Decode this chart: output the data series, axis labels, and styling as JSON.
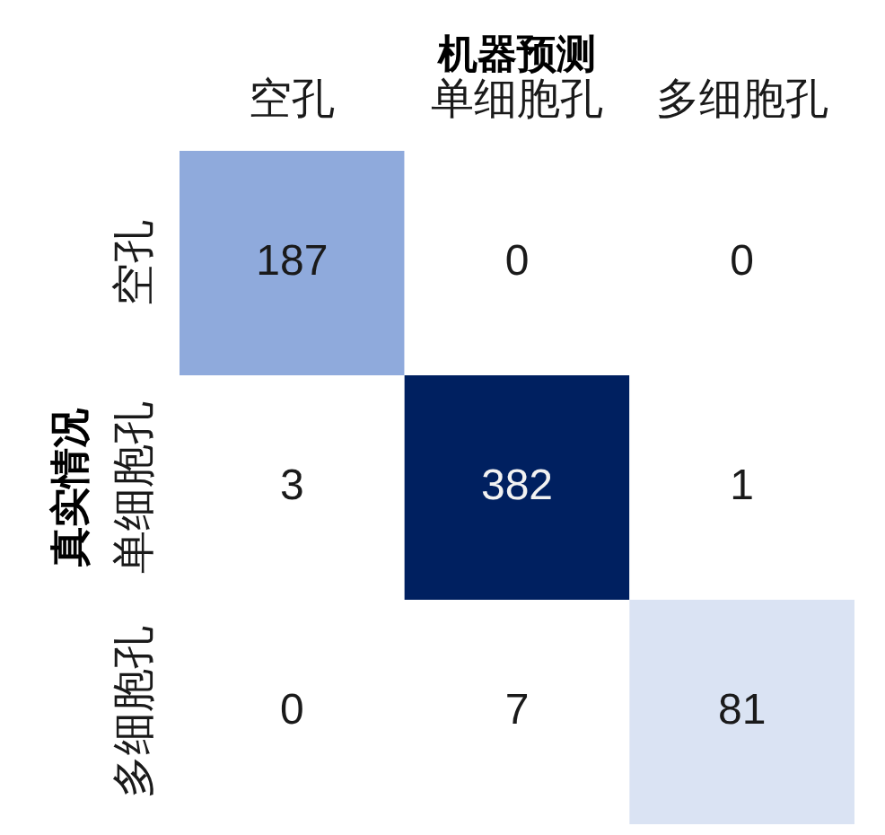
{
  "chart_data": {
    "type": "heatmap",
    "xlabel": "机器预测",
    "ylabel": "真实情况",
    "categories": [
      "空孔",
      "单细胞孔",
      "多细胞孔"
    ],
    "y_categories": [
      "空孔",
      "单细胞孔",
      "多细胞孔"
    ],
    "cells": [
      [
        187,
        0,
        0
      ],
      [
        3,
        382,
        1
      ],
      [
        0,
        7,
        81
      ]
    ],
    "colors": [
      [
        "#8faadc",
        "#ffffff",
        "#ffffff"
      ],
      [
        "#ffffff",
        "#002060",
        "#ffffff"
      ],
      [
        "#ffffff",
        "#ffffff",
        "#dae3f3"
      ]
    ],
    "data_labels": true
  }
}
